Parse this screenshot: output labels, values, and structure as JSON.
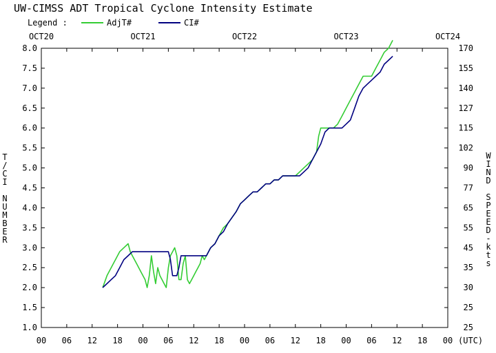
{
  "chart_data": {
    "type": "line",
    "title": "UW-CIMSS ADT Tropical Cyclone Intensity Estimate",
    "legend": {
      "label": "Legend :",
      "position": "top-left",
      "entries": [
        {
          "name": "AdjT#",
          "color": "#33cc33"
        },
        {
          "name": "CI#",
          "color": "#000080"
        }
      ]
    },
    "x_unit_label": "(UTC)",
    "x_range_hours": [
      0,
      96
    ],
    "date_labels": [
      {
        "label": "OCT20",
        "hour": 0
      },
      {
        "label": "OCT21",
        "hour": 24
      },
      {
        "label": "OCT22",
        "hour": 48
      },
      {
        "label": "OCT23",
        "hour": 72
      },
      {
        "label": "OCT24",
        "hour": 96
      }
    ],
    "hour_ticks": [
      "00",
      "06",
      "12",
      "18",
      "00",
      "06",
      "12",
      "18",
      "00",
      "06",
      "12",
      "18",
      "00",
      "06",
      "12",
      "18",
      "00"
    ],
    "ylabel_left": "T/CI NUMBER",
    "ylabel_right": "WIND SPEED-kts",
    "ylim": [
      1.0,
      8.0
    ],
    "y_ticks": [
      1.0,
      1.5,
      2.0,
      2.5,
      3.0,
      3.5,
      4.0,
      4.5,
      5.0,
      5.5,
      6.0,
      6.5,
      7.0,
      7.5,
      8.0
    ],
    "y_tick_labels": [
      "1.0",
      "1.5",
      "2.0",
      "2.5",
      "3.0",
      "3.5",
      "4.0",
      "4.5",
      "5.0",
      "5.5",
      "6.0",
      "6.5",
      "7.0",
      "7.5",
      "8.0"
    ],
    "y_right_labels": [
      "25",
      "25",
      "30",
      "35",
      "45",
      "55",
      "65",
      "77",
      "90",
      "102",
      "115",
      "127",
      "140",
      "155",
      "170"
    ],
    "grid": false,
    "series": [
      {
        "name": "AdjT#",
        "color": "#33cc33",
        "x": [
          14.5,
          15.5,
          16.5,
          17.5,
          18.5,
          19.5,
          20.5,
          21,
          21.5,
          22.5,
          23.5,
          24.5,
          25,
          25.5,
          26,
          26.5,
          27,
          27.5,
          28,
          28.5,
          29,
          29.5,
          30,
          30.5,
          31,
          31.5,
          32,
          32.5,
          33,
          33.5,
          34,
          34.5,
          35,
          35.5,
          36,
          36.5,
          37,
          37.5,
          38,
          38.5,
          39,
          40,
          41,
          42,
          43,
          44,
          46,
          47,
          48,
          49,
          50,
          51,
          52,
          53,
          54,
          55,
          56,
          57,
          58,
          59,
          60,
          61,
          62,
          63,
          64,
          65,
          65.5,
          66,
          67,
          68,
          69,
          70,
          71,
          72,
          73,
          74,
          75,
          76,
          77,
          78,
          79,
          80,
          81,
          82,
          83
        ],
        "y": [
          2.0,
          2.3,
          2.5,
          2.7,
          2.9,
          3.0,
          3.1,
          2.9,
          2.8,
          2.6,
          2.4,
          2.2,
          2.0,
          2.3,
          2.8,
          2.4,
          2.1,
          2.5,
          2.3,
          2.2,
          2.1,
          2.0,
          2.5,
          2.8,
          2.9,
          3.0,
          2.8,
          2.2,
          2.2,
          2.6,
          2.8,
          2.2,
          2.1,
          2.2,
          2.3,
          2.4,
          2.5,
          2.6,
          2.8,
          2.7,
          2.8,
          3.0,
          3.1,
          3.3,
          3.5,
          3.6,
          3.9,
          4.1,
          4.2,
          4.3,
          4.4,
          4.4,
          4.5,
          4.6,
          4.6,
          4.7,
          4.7,
          4.8,
          4.8,
          4.8,
          4.8,
          4.9,
          5.0,
          5.1,
          5.2,
          5.4,
          5.8,
          6.0,
          6.0,
          6.0,
          6.0,
          6.1,
          6.3,
          6.5,
          6.7,
          6.9,
          7.1,
          7.3,
          7.3,
          7.3,
          7.5,
          7.7,
          7.9,
          8.0,
          8.2
        ]
      },
      {
        "name": "CI#",
        "color": "#000080",
        "x": [
          14.5,
          15.5,
          16.5,
          17.5,
          18.5,
          19.5,
          20.5,
          21.5,
          22.5,
          23.5,
          24.5,
          26,
          28,
          29,
          30,
          30.5,
          31,
          31.5,
          32,
          32.5,
          33,
          34,
          35,
          36,
          37,
          38,
          39,
          40,
          41,
          42,
          43,
          44,
          46,
          47,
          48,
          49,
          50,
          51,
          52,
          53,
          54,
          55,
          56,
          57,
          58,
          59,
          60,
          61,
          62,
          63,
          64,
          65,
          66,
          67,
          68,
          69,
          70,
          71,
          72,
          73,
          74,
          75,
          76,
          77,
          78,
          79,
          80,
          81,
          82,
          83
        ],
        "y": [
          2.0,
          2.1,
          2.2,
          2.3,
          2.5,
          2.7,
          2.8,
          2.9,
          2.9,
          2.9,
          2.9,
          2.9,
          2.9,
          2.9,
          2.9,
          2.7,
          2.3,
          2.3,
          2.3,
          2.5,
          2.8,
          2.8,
          2.8,
          2.8,
          2.8,
          2.8,
          2.8,
          3.0,
          3.1,
          3.3,
          3.4,
          3.6,
          3.9,
          4.1,
          4.2,
          4.3,
          4.4,
          4.4,
          4.5,
          4.6,
          4.6,
          4.7,
          4.7,
          4.8,
          4.8,
          4.8,
          4.8,
          4.8,
          4.9,
          5.0,
          5.2,
          5.4,
          5.6,
          5.9,
          6.0,
          6.0,
          6.0,
          6.0,
          6.1,
          6.2,
          6.5,
          6.8,
          7.0,
          7.1,
          7.2,
          7.3,
          7.4,
          7.6,
          7.7,
          7.8
        ]
      }
    ]
  }
}
